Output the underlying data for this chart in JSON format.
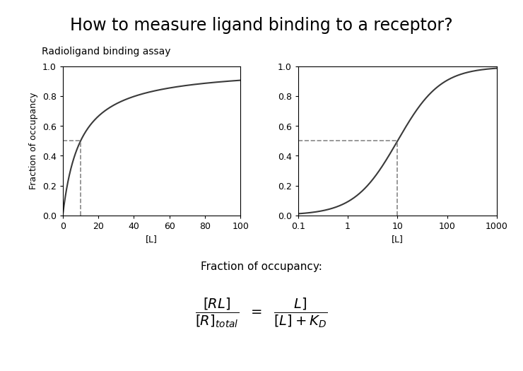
{
  "title": "How to measure ligand binding to a receptor?",
  "subtitle": "Radioligand binding assay",
  "ylabel": "Fraction of occupancy",
  "xlabel_left": "[L]",
  "xlabel_right": "[L]",
  "KD": 10,
  "left_xlim": [
    0,
    100
  ],
  "left_ylim": [
    0.0,
    1.0
  ],
  "left_xticks": [
    0,
    20,
    40,
    60,
    80,
    100
  ],
  "left_yticks": [
    0.0,
    0.2,
    0.4,
    0.6,
    0.8,
    1.0
  ],
  "right_xtick_labels": [
    "0.1",
    "1",
    "10",
    "100",
    "1000"
  ],
  "right_xtick_vals": [
    0.1,
    1,
    10,
    100,
    1000
  ],
  "right_ylim": [
    0.0,
    1.0
  ],
  "right_yticks": [
    0.0,
    0.2,
    0.4,
    0.6,
    0.8,
    1.0
  ],
  "curve_color": "#3a3a3a",
  "dashed_color": "#888888",
  "dashed_linewidth": 1.2,
  "curve_linewidth": 1.5,
  "background_color": "#ffffff",
  "title_fontsize": 17,
  "subtitle_fontsize": 10,
  "label_fontsize": 9,
  "tick_fontsize": 9,
  "fraction_label": "Fraction of occupancy:"
}
